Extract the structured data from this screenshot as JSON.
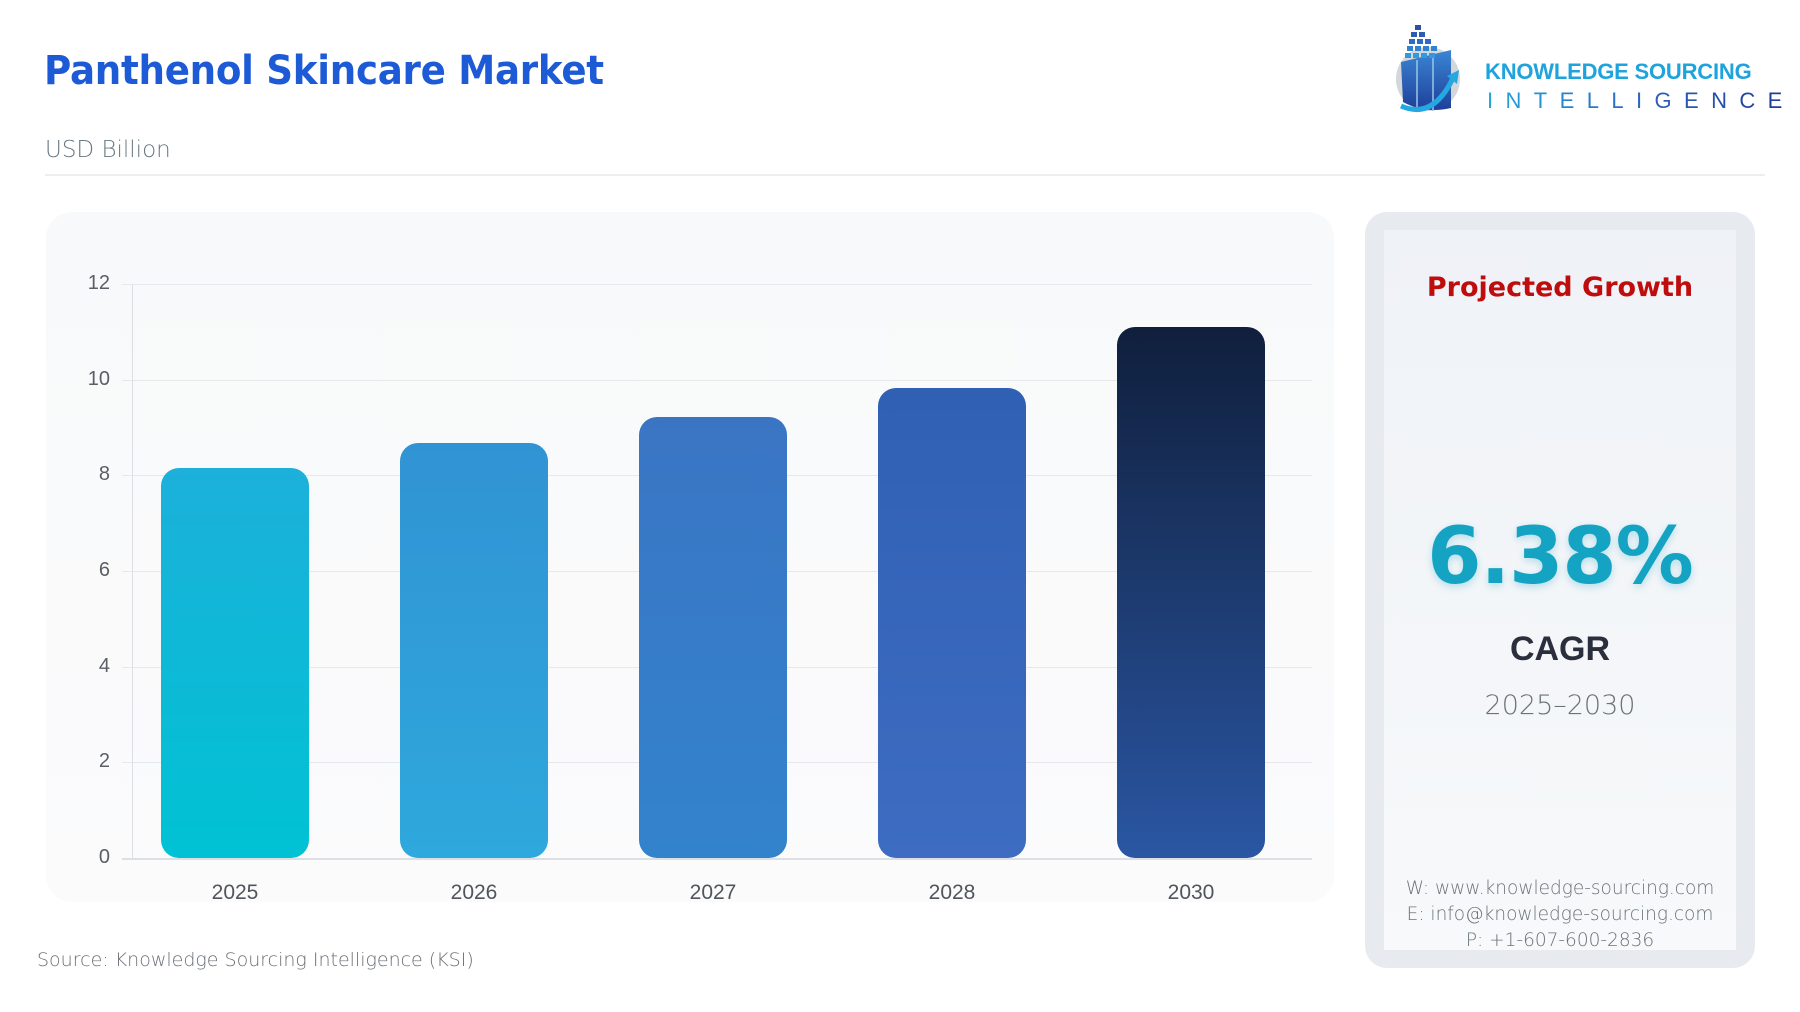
{
  "header": {
    "title": "Panthenol Skincare Market",
    "unit": "USD Billion"
  },
  "logo": {
    "line1": "KNOWLEDGE SOURCING",
    "line2": "INTELLIGENCE"
  },
  "chart_data": {
    "type": "bar",
    "title": "Panthenol Skincare Market",
    "subtitle": "USD Billion",
    "xlabel": "",
    "ylabel": "USD Billion",
    "categories": [
      "2025",
      "2026",
      "2027",
      "2028",
      "2030"
    ],
    "values": [
      8.15,
      8.67,
      9.21,
      9.83,
      11.11
    ],
    "ylim": [
      0,
      12
    ],
    "yticks": [
      "0",
      "2",
      "4",
      "6",
      "8",
      "10",
      "12"
    ],
    "grid": true,
    "legend": "none",
    "bar_colors": [
      {
        "top": "#1cb0da",
        "bottom": "#00c2d4"
      },
      {
        "top": "#3193d3",
        "bottom": "#2ea8dd"
      },
      {
        "top": "#3a75c4",
        "bottom": "#3383cc"
      },
      {
        "top": "#3060b4",
        "bottom": "#3d6cc2"
      },
      {
        "top": "#101f3c",
        "bottom": "#2a56a3"
      }
    ]
  },
  "footer": {
    "source": "Source: Knowledge Sourcing Intelligence (KSI)"
  },
  "panel": {
    "title": "Projected Growth",
    "cagr_value": "6.38%",
    "cagr_label": "CAGR",
    "period": "2025–2030",
    "contact": {
      "web": "W: www.knowledge-sourcing.com",
      "email": "E: info@knowledge-sourcing.com",
      "phone": "P: +1-607-600-2836"
    }
  },
  "colors": {
    "title": "#1d5ad6",
    "panel_title": "#bf0d0d",
    "cagr": "#14a3c2"
  }
}
